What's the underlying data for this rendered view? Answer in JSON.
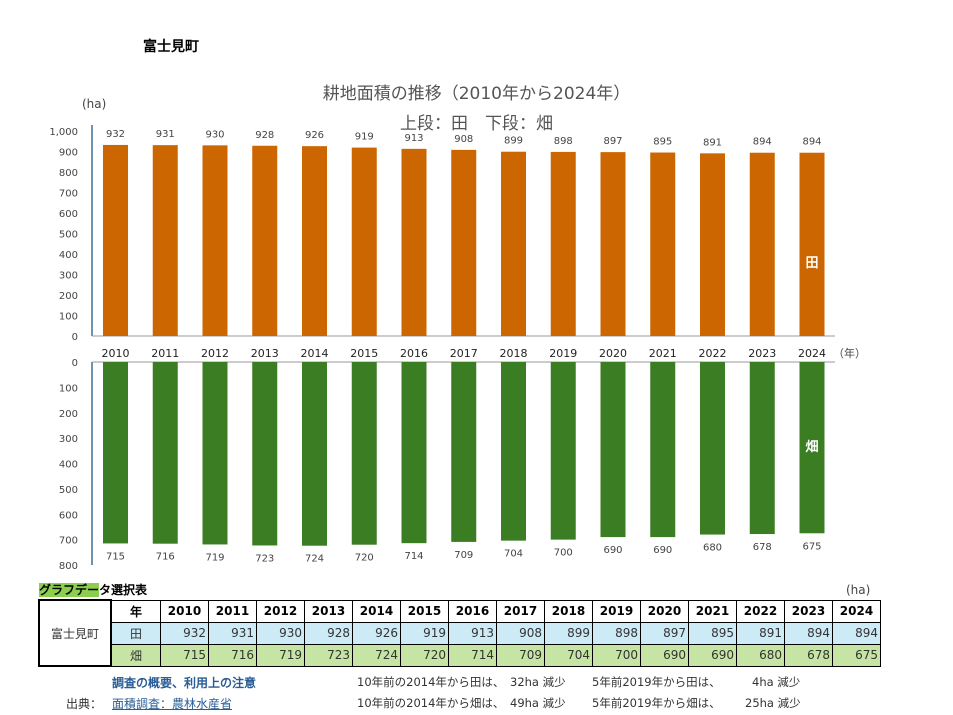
{
  "town": "富士見町",
  "chart_data": {
    "type": "bar",
    "title": "耕地面積の推移（2010年から2024年）",
    "subtitle": "上段：田　下段：畑",
    "ylabel": "(ha)",
    "xlabel": "（年）",
    "categories": [
      "2010",
      "2011",
      "2012",
      "2013",
      "2014",
      "2015",
      "2016",
      "2017",
      "2018",
      "2019",
      "2020",
      "2021",
      "2022",
      "2023",
      "2024"
    ],
    "series": [
      {
        "name": "田",
        "color": "#cc6600",
        "values": [
          932,
          931,
          930,
          928,
          926,
          919,
          913,
          908,
          899,
          898,
          897,
          895,
          891,
          894,
          894
        ]
      },
      {
        "name": "畑",
        "color": "#3a7d22",
        "values": [
          715,
          716,
          719,
          723,
          724,
          720,
          714,
          709,
          704,
          700,
          690,
          690,
          680,
          678,
          675
        ]
      }
    ],
    "top_ylim": [
      0,
      1000
    ],
    "top_ticks": [
      "0",
      "100",
      "200",
      "300",
      "400",
      "500",
      "600",
      "700",
      "800",
      "900",
      "1,000"
    ],
    "bottom_ylim": [
      0,
      800
    ],
    "bottom_ticks": [
      "0",
      "100",
      "200",
      "300",
      "400",
      "500",
      "600",
      "700",
      "800"
    ],
    "bottom_inverted": true
  },
  "table": {
    "title_highlight": "グラフデー",
    "title_rest": "タ選択表",
    "unit": "(ha)",
    "year_header": "年",
    "town": "富士見町",
    "row_labels": [
      "田",
      "畑"
    ]
  },
  "notes": {
    "link": "調査の概要、利用上の注意",
    "source_label": "出典：",
    "source_link": "面積調査：農林水産省",
    "lines": [
      [
        "10年前の2014年から田は、",
        "32ha 減少",
        "5年前2019年から田は、",
        "4ha 減少"
      ],
      [
        "10年前の2014年から畑は、",
        "49ha 減少",
        "5年前2019年から畑は、",
        "25ha 減少"
      ]
    ]
  }
}
